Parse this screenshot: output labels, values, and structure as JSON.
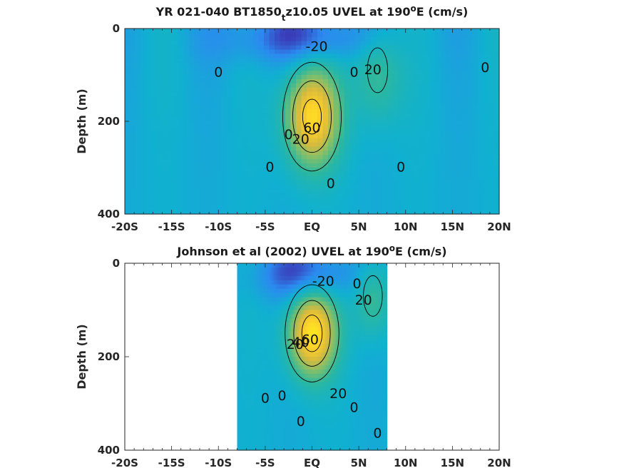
{
  "colors": {
    "colormap": [
      "#3e26a8",
      "#2c89f0",
      "#10b1d0",
      "#2ab7a1",
      "#7ebf6c",
      "#d7ba3d",
      "#fdd12a",
      "#f9fb15"
    ],
    "contour_line": "#000000",
    "axis": "#262626"
  },
  "chart_data": [
    {
      "type": "heatmap",
      "title": {
        "prefix": "YR 021-040 BT1850",
        "subscript": "t",
        "mid": "z10.05 UVEL at 190",
        "superscript": "o",
        "suffix": "E (cm/s)"
      },
      "ylabel": "Depth (m)",
      "xlabel": "",
      "x_ticks": [
        "-20S",
        "-15S",
        "-10S",
        "-5S",
        "EQ",
        "5N",
        "10N",
        "15N",
        "20N"
      ],
      "x_tick_values": [
        -20,
        -15,
        -10,
        -5,
        0,
        5,
        10,
        15,
        20
      ],
      "y_ticks": [
        "0",
        "200",
        "400"
      ],
      "y_tick_values": [
        0,
        200,
        400
      ],
      "xlim": [
        -20,
        20
      ],
      "ylim": [
        0,
        400
      ],
      "y_reversed": true,
      "color_range": [
        -30,
        80
      ],
      "contour_levels": [
        -20,
        0,
        20,
        40,
        60
      ],
      "data_extent_lat": [
        -20,
        20
      ],
      "features": [
        {
          "kind": "EUC core",
          "lat": 0,
          "depth": 190,
          "max": 68,
          "lat_width": 2.0,
          "depth_width": 75
        },
        {
          "kind": "SEC westward",
          "lat": -1,
          "depth": 20,
          "min": -24,
          "lat_width": 6,
          "depth_width": 40
        },
        {
          "kind": "NECC eastward",
          "lat": 7,
          "depth": 90,
          "max": 24,
          "lat_width": 1.8,
          "depth_width": 80
        }
      ],
      "contour_labels": [
        {
          "text": "-20",
          "lat": 0.5,
          "depth": 40
        },
        {
          "text": "0",
          "lat": -10,
          "depth": 95
        },
        {
          "text": "0",
          "lat": 4.5,
          "depth": 95
        },
        {
          "text": "20",
          "lat": 6.5,
          "depth": 90
        },
        {
          "text": "0",
          "lat": 18.5,
          "depth": 85
        },
        {
          "text": "0",
          "lat": -2.5,
          "depth": 230
        },
        {
          "text": "20",
          "lat": -1.2,
          "depth": 240
        },
        {
          "text": "60",
          "lat": 0.0,
          "depth": 215
        },
        {
          "text": "0",
          "lat": -4.5,
          "depth": 300
        },
        {
          "text": "0",
          "lat": 9.5,
          "depth": 300
        },
        {
          "text": "0",
          "lat": 2.0,
          "depth": 335
        }
      ]
    },
    {
      "type": "heatmap",
      "title": {
        "prefix": "Johnson et al (2002) UVEL at 190",
        "subscript": "",
        "mid": "",
        "superscript": "o",
        "suffix": "E (cm/s)"
      },
      "ylabel": "Depth (m)",
      "xlabel": "",
      "x_ticks": [
        "-20S",
        "-15S",
        "-10S",
        "-5S",
        "EQ",
        "5N",
        "10N",
        "15N",
        "20N"
      ],
      "x_tick_values": [
        -20,
        -15,
        -10,
        -5,
        0,
        5,
        10,
        15,
        20
      ],
      "y_ticks": [
        "0",
        "200",
        "400"
      ],
      "y_tick_values": [
        0,
        200,
        400
      ],
      "xlim": [
        -20,
        20
      ],
      "ylim": [
        0,
        400
      ],
      "y_reversed": true,
      "color_range": [
        -30,
        80
      ],
      "contour_levels": [
        -20,
        0,
        20,
        40,
        60
      ],
      "data_extent_lat": [
        -8,
        8
      ],
      "features": [
        {
          "kind": "EUC core",
          "lat": 0,
          "depth": 150,
          "max": 72,
          "lat_width": 1.8,
          "depth_width": 65
        },
        {
          "kind": "SEC westward",
          "lat": -0.5,
          "depth": 25,
          "min": -26,
          "lat_width": 4,
          "depth_width": 40
        },
        {
          "kind": "NECC eastward",
          "lat": 6.5,
          "depth": 70,
          "max": 26,
          "lat_width": 1.4,
          "depth_width": 60
        }
      ],
      "contour_labels": [
        {
          "text": "-20",
          "lat": 1.2,
          "depth": 40
        },
        {
          "text": "20",
          "lat": 5.5,
          "depth": 80
        },
        {
          "text": "0",
          "lat": 4.8,
          "depth": 45
        },
        {
          "text": "20",
          "lat": -1.8,
          "depth": 175
        },
        {
          "text": "40",
          "lat": -1.2,
          "depth": 170
        },
        {
          "text": "60",
          "lat": -0.2,
          "depth": 165
        },
        {
          "text": "0",
          "lat": -5,
          "depth": 290
        },
        {
          "text": "0",
          "lat": -3.2,
          "depth": 285
        },
        {
          "text": "20",
          "lat": 2.8,
          "depth": 280
        },
        {
          "text": "0",
          "lat": 4.5,
          "depth": 310
        },
        {
          "text": "0",
          "lat": -1.2,
          "depth": 340
        },
        {
          "text": "0",
          "lat": 7.0,
          "depth": 365
        }
      ]
    }
  ]
}
